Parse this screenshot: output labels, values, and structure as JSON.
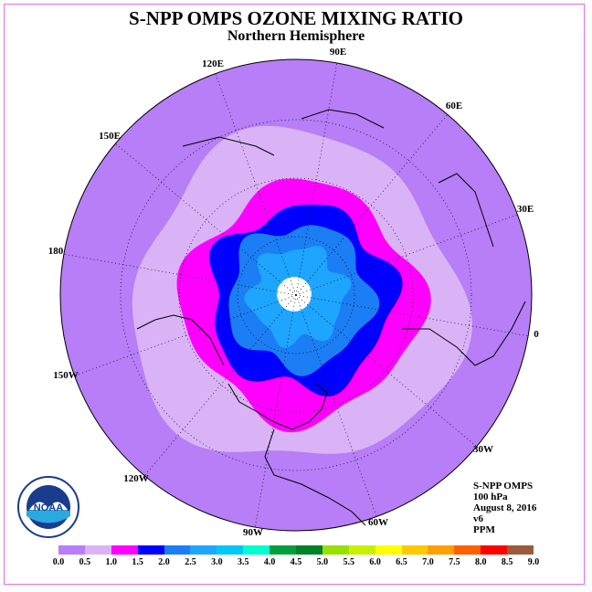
{
  "title": "S-NPP OMPS OZONE MIXING RATIO",
  "subtitle": "Northern Hemisphere",
  "info": {
    "instrument": "S-NPP OMPS",
    "level": "100 hPa",
    "date": "August 8, 2016",
    "version": "v6",
    "units": "PPM"
  },
  "logo": {
    "text": "NOAA"
  },
  "longitude_labels": [
    "90E",
    "60E",
    "30E",
    "0",
    "30W",
    "60W",
    "90W",
    "120W",
    "150W",
    "180",
    "150E",
    "120E"
  ],
  "colorbar": {
    "ticks": [
      "0.0",
      "0.5",
      "1.0",
      "1.5",
      "2.0",
      "2.5",
      "3.0",
      "3.5",
      "4.0",
      "4.5",
      "5.0",
      "5.5",
      "6.0",
      "6.5",
      "7.0",
      "7.5",
      "8.0",
      "8.5",
      "9.0"
    ],
    "colors": [
      "#b77ef7",
      "#dab3f7",
      "#ff00ff",
      "#0000ff",
      "#1c7ef5",
      "#1ea5ff",
      "#00c8f5",
      "#00ffd0",
      "#00a03c",
      "#008028",
      "#98e000",
      "#c8f000",
      "#ffff00",
      "#ffc800",
      "#ffa000",
      "#ff6000",
      "#ff0000",
      "#9c5a3c"
    ]
  },
  "map": {
    "ocean_color": "#b77ef7",
    "band_colors": [
      "#dab3f7",
      "#ff00ff",
      "#0000ff",
      "#1c7ef5",
      "#1ea5ff"
    ],
    "pole_color": "#ffffff"
  }
}
